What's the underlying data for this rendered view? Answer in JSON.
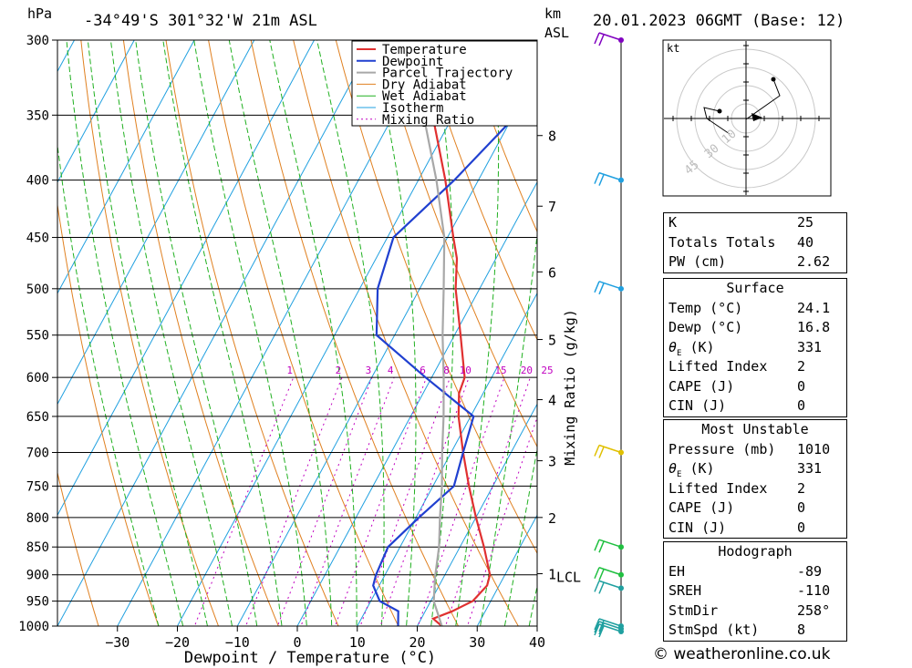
{
  "header": {
    "location": "-34°49'S 301°32'W 21m ASL",
    "datetime": "20.01.2023 06GMT (Base: 12)",
    "p_unit": "hPa",
    "km_unit": "km",
    "asl_label": "ASL"
  },
  "chart_data": {
    "type": "line",
    "title": "-34°49'S 301°32'W 21m ASL",
    "xlabel": "Dewpoint / Temperature (°C)",
    "ylabel": "hPa",
    "ylabel_right": "Mixing Ratio (g/kg)",
    "xlim": [
      -40,
      40
    ],
    "ylim": [
      1000,
      300
    ],
    "y_scale": "log",
    "x_ticks": [
      -30,
      -20,
      -10,
      0,
      10,
      20,
      30,
      40
    ],
    "p_ticks": [
      300,
      350,
      400,
      450,
      500,
      550,
      600,
      650,
      700,
      750,
      800,
      850,
      900,
      950,
      1000
    ],
    "km_ticks": [
      {
        "label": "8",
        "p": 365
      },
      {
        "label": "7",
        "p": 422
      },
      {
        "label": "6",
        "p": 483
      },
      {
        "label": "5",
        "p": 555
      },
      {
        "label": "4",
        "p": 628
      },
      {
        "label": "3",
        "p": 712
      },
      {
        "label": "2",
        "p": 800
      },
      {
        "label": "1",
        "p": 898
      }
    ],
    "lcl_label": "LCL",
    "lcl_p": 903,
    "mixing_ratio_labels": [
      "1",
      "2",
      "3",
      "4",
      "6",
      "8",
      "10",
      "15",
      "20",
      "25"
    ],
    "mixing_ratio_values": [
      1,
      2,
      3,
      4,
      6,
      8,
      10,
      15,
      20,
      25
    ],
    "legend": [
      "Temperature",
      "Dewpoint",
      "Parcel Trajectory",
      "Dry Adiabat",
      "Wet Adiabat",
      "Isotherm",
      "Mixing Ratio"
    ],
    "legend_position": "top-right",
    "colors": {
      "temperature": "#e03030",
      "dewpoint": "#2040d0",
      "parcel": "#a8a8a8",
      "dry_adiabat": "#e08020",
      "wet_adiabat": "#20b020",
      "isotherm": "#20a0e0",
      "mixing_ratio": "#c000c0"
    },
    "series": [
      {
        "name": "Temperature",
        "points": [
          [
            1000,
            24.1
          ],
          [
            985,
            22
          ],
          [
            970,
            24.5
          ],
          [
            950,
            27
          ],
          [
            920,
            28
          ],
          [
            900,
            27.5
          ],
          [
            850,
            24
          ],
          [
            800,
            20
          ],
          [
            750,
            16
          ],
          [
            700,
            12
          ],
          [
            650,
            8
          ],
          [
            620,
            6
          ],
          [
            600,
            5.5
          ],
          [
            550,
            1
          ],
          [
            500,
            -4
          ],
          [
            470,
            -6.5
          ],
          [
            450,
            -9
          ],
          [
            400,
            -15.5
          ],
          [
            350,
            -23.5
          ],
          [
            300,
            -31
          ]
        ]
      },
      {
        "name": "Dewpoint",
        "points": [
          [
            1000,
            16.8
          ],
          [
            970,
            15.5
          ],
          [
            950,
            11.5
          ],
          [
            920,
            9
          ],
          [
            900,
            8.5
          ],
          [
            850,
            8
          ],
          [
            800,
            10.5
          ],
          [
            750,
            13.5
          ],
          [
            700,
            12
          ],
          [
            650,
            10.5
          ],
          [
            600,
            -1
          ],
          [
            550,
            -13
          ],
          [
            500,
            -17
          ],
          [
            450,
            -19
          ],
          [
            400,
            -14
          ],
          [
            350,
            -9.5
          ],
          [
            300,
            -16
          ]
        ]
      },
      {
        "name": "Parcel Trajectory",
        "points": [
          [
            1000,
            24.1
          ],
          [
            950,
            20.5
          ],
          [
            903,
            18.5
          ],
          [
            850,
            16.5
          ],
          [
            800,
            14
          ],
          [
            750,
            11.5
          ],
          [
            700,
            8.5
          ],
          [
            650,
            5.5
          ],
          [
            600,
            2
          ],
          [
            550,
            -2
          ],
          [
            500,
            -6
          ],
          [
            450,
            -10.5
          ],
          [
            400,
            -17
          ],
          [
            350,
            -25
          ],
          [
            320,
            -30
          ],
          [
            310,
            -32
          ]
        ]
      }
    ],
    "wind_barbs_p": [
      300,
      400,
      500,
      700,
      850,
      900,
      925,
      1000,
      1005,
      1010
    ]
  },
  "hodograph": {
    "unit": "kt",
    "rings": [
      "10",
      "30",
      "45"
    ]
  },
  "indices": {
    "rows": [
      {
        "k": "K",
        "v": "25"
      },
      {
        "k": "Totals Totals",
        "v": "40"
      },
      {
        "k": "PW (cm)",
        "v": "2.62"
      }
    ]
  },
  "surface": {
    "title": "Surface",
    "rows": [
      {
        "k": "Temp (°C)",
        "v": "24.1"
      },
      {
        "k": "Dewp (°C)",
        "v": "16.8"
      },
      {
        "k": "θE(K)",
        "v": "331"
      },
      {
        "k": "Lifted Index",
        "v": "2"
      },
      {
        "k": "CAPE (J)",
        "v": "0"
      },
      {
        "k": "CIN (J)",
        "v": "0"
      }
    ]
  },
  "most_unstable": {
    "title": "Most Unstable",
    "rows": [
      {
        "k": "Pressure (mb)",
        "v": "1010"
      },
      {
        "k": "θE (K)",
        "v": "331"
      },
      {
        "k": "Lifted Index",
        "v": "2"
      },
      {
        "k": "CAPE (J)",
        "v": "0"
      },
      {
        "k": "CIN (J)",
        "v": "0"
      }
    ]
  },
  "hodo_table": {
    "title": "Hodograph",
    "rows": [
      {
        "k": "EH",
        "v": "-89"
      },
      {
        "k": "SREH",
        "v": "-110"
      },
      {
        "k": "StmDir",
        "v": "258°"
      },
      {
        "k": "StmSpd (kt)",
        "v": "8"
      }
    ]
  },
  "credit": "© weatheronline.co.uk"
}
